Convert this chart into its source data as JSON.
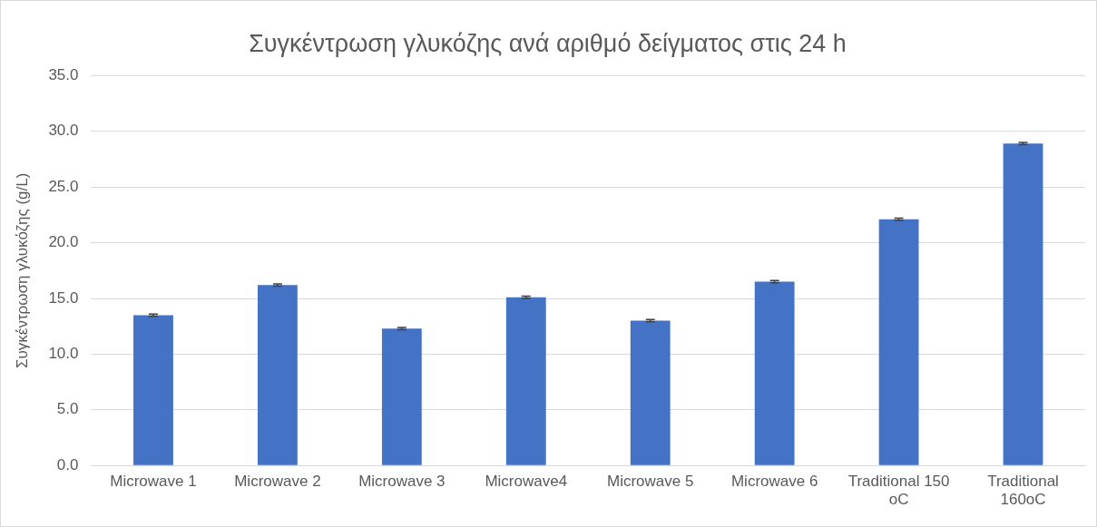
{
  "chart_data": {
    "type": "bar",
    "title": "Συγκέντρωση γλυκόζης ανά αριθμό δείγματος στις 24 h",
    "ylabel": "Συγκέντρωση γλυκόζης (g/L)",
    "categories": [
      "Microwave 1",
      "Microwave 2",
      "Microwave 3",
      "Microwave4",
      "Microwave 5",
      "Microwave 6",
      "Traditional 150 oC",
      "Traditional 160oC"
    ],
    "values": [
      13.5,
      16.2,
      12.3,
      15.1,
      13.0,
      16.5,
      22.1,
      28.9
    ],
    "errors": [
      0.1,
      0.1,
      0.1,
      0.1,
      0.1,
      0.1,
      0.1,
      0.1
    ],
    "color": "#4472c4",
    "ylim": [
      0,
      35
    ],
    "yticks": [
      {
        "value": 0,
        "label": "0.0"
      },
      {
        "value": 5,
        "label": "5.0"
      },
      {
        "value": 10,
        "label": "10.0"
      },
      {
        "value": 15,
        "label": "15.0"
      },
      {
        "value": 20,
        "label": "20.0"
      },
      {
        "value": 25,
        "label": "25.0"
      },
      {
        "value": 30,
        "label": "30.0"
      },
      {
        "value": 35,
        "label": "35.0"
      }
    ],
    "grid": "y"
  }
}
